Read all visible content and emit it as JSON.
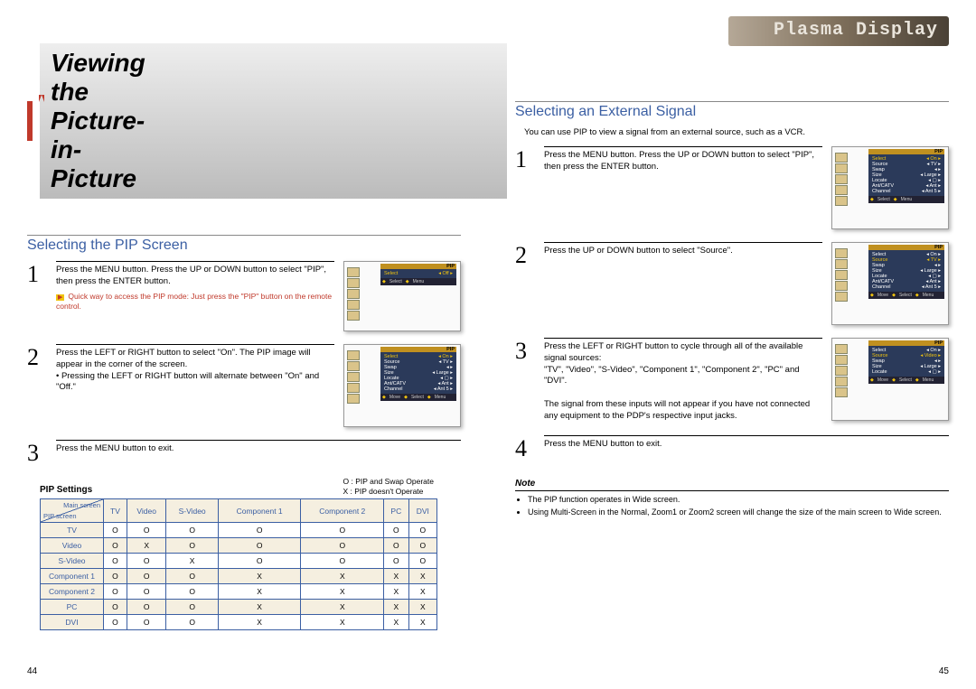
{
  "brand": "Plasma Display",
  "page_title": "Viewing the Picture-in-Picture",
  "left": {
    "section": "Selecting the PIP Screen",
    "steps": [
      {
        "n": "1",
        "text": "Press the MENU button. Press the UP or DOWN button to select \"PIP\", then press the ENTER button.",
        "quick": "Quick way to access the PIP mode: Just press the \"PIP\" button on the remote control.",
        "osd": {
          "title": "PIP",
          "rows": [
            [
              "Select",
              "Off"
            ]
          ],
          "foot": [
            "Select",
            "Menu"
          ],
          "sel": 0
        }
      },
      {
        "n": "2",
        "text": "Press the LEFT or RIGHT button to select \"On\". The PIP image will appear in the corner of the screen.\n• Pressing the LEFT or RIGHT button will alternate between \"On\" and \"Off.\"",
        "osd": {
          "title": "PIP",
          "rows": [
            [
              "Select",
              "On"
            ],
            [
              "Source",
              "TV"
            ],
            [
              "Swap",
              ""
            ],
            [
              "Size",
              "Large"
            ],
            [
              "Locate",
              "▢"
            ],
            [
              "Ant/CATV",
              "Ant"
            ],
            [
              "Channel",
              "Ant 5"
            ]
          ],
          "foot": [
            "Move",
            "Select",
            "Menu"
          ],
          "sel": 0
        }
      },
      {
        "n": "3",
        "text": "Press the MENU button to exit."
      }
    ],
    "settings_label": "PIP Settings",
    "legend": {
      "o": "O : PIP and Swap Operate",
      "x": "X : PIP doesn't Operate"
    },
    "table": {
      "diag_a": "Main screen",
      "diag_b": "PIP screen",
      "cols": [
        "TV",
        "Video",
        "S-Video",
        "Component 1",
        "Component 2",
        "PC",
        "DVI"
      ],
      "rows": [
        {
          "h": "TV",
          "c": [
            "O",
            "O",
            "O",
            "O",
            "O",
            "O",
            "O"
          ]
        },
        {
          "h": "Video",
          "c": [
            "O",
            "X",
            "O",
            "O",
            "O",
            "O",
            "O"
          ]
        },
        {
          "h": "S-Video",
          "c": [
            "O",
            "O",
            "X",
            "O",
            "O",
            "O",
            "O"
          ]
        },
        {
          "h": "Component 1",
          "c": [
            "O",
            "O",
            "O",
            "X",
            "X",
            "X",
            "X"
          ]
        },
        {
          "h": "Component 2",
          "c": [
            "O",
            "O",
            "O",
            "X",
            "X",
            "X",
            "X"
          ]
        },
        {
          "h": "PC",
          "c": [
            "O",
            "O",
            "O",
            "X",
            "X",
            "X",
            "X"
          ]
        },
        {
          "h": "DVI",
          "c": [
            "O",
            "O",
            "O",
            "X",
            "X",
            "X",
            "X"
          ]
        }
      ]
    },
    "pagenum": "44"
  },
  "right": {
    "section": "Selecting an External Signal",
    "intro": "You can use PIP to view a signal from an external source, such as a VCR.",
    "steps": [
      {
        "n": "1",
        "text": "Press the MENU button. Press the UP or DOWN button to select \"PIP\", then press the ENTER button.",
        "osd": {
          "title": "PIP",
          "rows": [
            [
              "Select",
              "On"
            ],
            [
              "Source",
              "TV"
            ],
            [
              "Swap",
              ""
            ],
            [
              "Size",
              "Large"
            ],
            [
              "Locate",
              "▢"
            ],
            [
              "Ant/CATV",
              "Ant"
            ],
            [
              "Channel",
              "Ant 5"
            ]
          ],
          "foot": [
            "Select",
            "Menu"
          ],
          "sel": 0
        }
      },
      {
        "n": "2",
        "text": "Press the UP or DOWN button to select \"Source\".",
        "osd": {
          "title": "PIP",
          "rows": [
            [
              "Select",
              "On"
            ],
            [
              "Source",
              "TV"
            ],
            [
              "Swap",
              ""
            ],
            [
              "Size",
              "Large"
            ],
            [
              "Locate",
              "▢"
            ],
            [
              "Ant/CATV",
              "Ant"
            ],
            [
              "Channel",
              "Ant 5"
            ]
          ],
          "foot": [
            "Move",
            "Select",
            "Menu"
          ],
          "sel": 1
        }
      },
      {
        "n": "3",
        "text": "Press the LEFT or RIGHT button to cycle through all of the available signal sources:\n\"TV\", \"Video\", \"S-Video\", \"Component 1\", \"Component 2\", \"PC\" and \"DVI\".\n\nThe signal from these inputs will not appear if you have not connected any equipment to the PDP's respective input jacks.",
        "osd": {
          "title": "PIP",
          "rows": [
            [
              "Select",
              "On"
            ],
            [
              "Source",
              "Video"
            ],
            [
              "Swap",
              ""
            ],
            [
              "Size",
              "Large"
            ],
            [
              "Locate",
              "▢"
            ]
          ],
          "foot": [
            "Move",
            "Select",
            "Menu"
          ],
          "sel": 1
        }
      },
      {
        "n": "4",
        "text": "Press the MENU button to exit."
      }
    ],
    "note_hdr": "Note",
    "notes": [
      "The PIP function operates in Wide screen.",
      "Using Multi-Screen in the Normal, Zoom1 or Zoom2 screen will change the size of the main screen to Wide screen."
    ],
    "pagenum": "45"
  }
}
